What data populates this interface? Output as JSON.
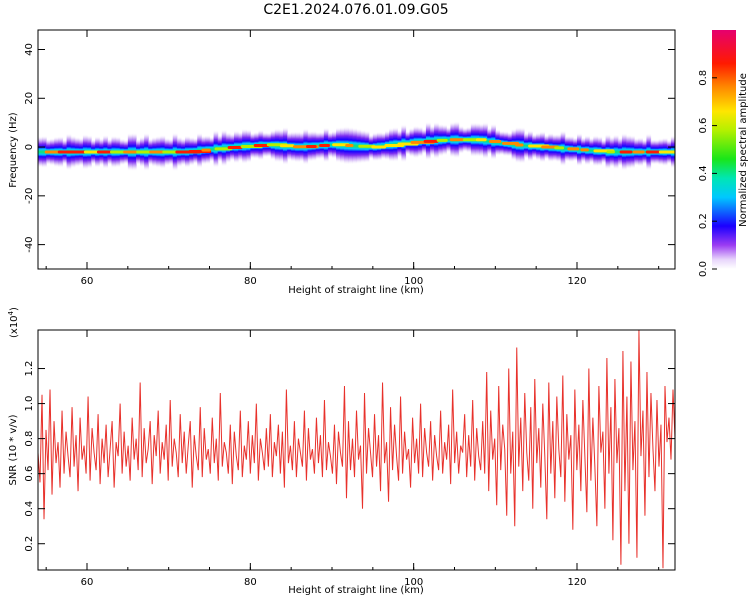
{
  "figure": {
    "title": "C2E1.2024.076.01.09.G05"
  },
  "chart_data": [
    {
      "type": "heatmap",
      "panel": "top",
      "xlabel": "Height of straight line (km)",
      "ylabel": "Frequency (Hz)",
      "xlim": [
        54,
        132
      ],
      "ylim": [
        -50,
        48
      ],
      "xticks": [
        60,
        80,
        100,
        120
      ],
      "yticks": [
        -40,
        -20,
        0,
        20,
        40
      ],
      "yticklabels": [
        "-40",
        "-20",
        "0",
        "20",
        "40"
      ],
      "grid": false,
      "colorbar": {
        "label": "Normalized spectral amplitude",
        "range": [
          0.0,
          1.0
        ],
        "ticks": [
          0.0,
          0.2,
          0.4,
          0.6,
          0.8
        ],
        "ticklabels": [
          "0.0",
          "0.2",
          "0.4",
          "0.6",
          "0.8"
        ],
        "colormap": "rainbow"
      },
      "ridge_frequency": {
        "x": [
          54,
          60,
          66,
          72,
          78,
          82,
          86,
          90,
          95,
          100,
          104,
          108,
          112,
          116,
          120,
          124,
          128,
          132
        ],
        "y": [
          -2,
          -2,
          -2,
          -2,
          0,
          1,
          0,
          1,
          0,
          2,
          3,
          3,
          1,
          0,
          -1,
          -2,
          -2,
          -2
        ]
      }
    },
    {
      "type": "line",
      "panel": "bottom",
      "xlabel": "Height of straight line (km)",
      "ylabel": "SNR (10 * v/v)",
      "yscale_label": "(x10",
      "yscale_exp": "4",
      "yscale_close": ")",
      "xlim": [
        54,
        132
      ],
      "ylim": [
        0.05,
        1.42
      ],
      "xticks": [
        60,
        80,
        100,
        120
      ],
      "yticks": [
        0.2,
        0.4,
        0.6,
        0.8,
        1.0,
        1.2
      ],
      "yticklabels": [
        "0.2",
        "0.4",
        "0.6",
        "0.8",
        "1.0",
        "1.2"
      ],
      "grid": false,
      "series": [
        {
          "color": "#e8312b",
          "x_start": 54,
          "x_end": 132,
          "values": [
            0.72,
            0.55,
            1.05,
            0.34,
            0.85,
            0.62,
            1.08,
            0.48,
            0.9,
            0.66,
            0.78,
            0.52,
            0.96,
            0.6,
            0.84,
            0.7,
            0.58,
            0.98,
            0.64,
            0.82,
            0.5,
            0.92,
            0.68,
            0.76,
            0.6,
            1.04,
            0.56,
            0.86,
            0.72,
            0.62,
            0.94,
            0.54,
            0.8,
            0.66,
            0.88,
            0.58,
            0.74,
            0.9,
            0.52,
            0.78,
            0.7,
            1.0,
            0.6,
            0.84,
            0.64,
            0.76,
            0.56,
            0.92,
            0.68,
            0.8,
            0.62,
            1.12,
            0.58,
            0.86,
            0.66,
            0.74,
            0.9,
            0.54,
            0.82,
            0.7,
            0.96,
            0.6,
            0.78,
            0.68,
            0.88,
            0.56,
            1.02,
            0.64,
            0.8,
            0.72,
            0.58,
            0.94,
            0.66,
            0.84,
            0.6,
            0.76,
            0.9,
            0.52,
            0.82,
            0.7,
            0.62,
            0.98,
            0.58,
            0.86,
            0.68,
            0.74,
            0.6,
            0.92,
            0.66,
            0.8,
            0.56,
            1.06,
            0.64,
            0.78,
            0.72,
            0.6,
            0.88,
            0.54,
            0.84,
            0.7,
            0.62,
            0.96,
            0.58,
            0.76,
            0.68,
            0.9,
            0.6,
            0.82,
            0.66,
            1.0,
            0.56,
            0.8,
            0.72,
            0.62,
            0.86,
            0.64,
            0.94,
            0.58,
            0.78,
            0.7,
            0.88,
            0.6,
            0.84,
            0.52,
            1.08,
            0.66,
            0.76,
            0.62,
            0.9,
            0.58,
            0.8,
            0.72,
            0.64,
            0.96,
            0.56,
            0.86,
            0.68,
            0.74,
            0.6,
            0.92,
            0.66,
            0.82,
            0.58,
            1.02,
            0.62,
            0.78,
            0.7,
            0.6,
            0.88,
            0.54,
            0.84,
            0.72,
            0.64,
            1.1,
            0.46,
            0.9,
            0.62,
            0.8,
            0.58,
            0.96,
            0.68,
            0.76,
            0.4,
            1.06,
            0.6,
            0.86,
            0.72,
            0.58,
            0.94,
            0.64,
            0.82,
            0.5,
            1.12,
            0.66,
            0.78,
            0.44,
            0.98,
            0.62,
            0.88,
            0.7,
            0.56,
            1.04,
            0.6,
            0.84,
            0.68,
            0.74,
            0.52,
            0.92,
            0.66,
            0.8,
            0.6,
            1.0,
            0.58,
            0.86,
            0.72,
            0.64,
            0.9,
            0.56,
            0.82,
            0.7,
            0.62,
            0.96,
            0.6,
            0.78,
            0.68,
            0.88,
            0.54,
            1.08,
            0.66,
            0.84,
            0.6,
            0.76,
            0.72,
            0.94,
            0.58,
            0.82,
            0.64,
            1.02,
            0.56,
            0.86,
            0.7,
            0.62,
            0.9,
            0.6,
            1.18,
            0.5,
            0.96,
            0.68,
            0.8,
            0.42,
            1.1,
            0.62,
            0.88,
            0.74,
            0.36,
            1.2,
            0.6,
            0.84,
            0.3,
            1.32,
            0.64,
            0.92,
            0.5,
            1.06,
            0.72,
            0.56,
            0.98,
            0.4,
            1.14,
            0.66,
            0.86,
            0.52,
            1.0,
            0.7,
            0.34,
            1.12,
            0.6,
            0.9,
            0.46,
            1.04,
            0.74,
            0.58,
            1.16,
            0.44,
            0.94,
            0.68,
            0.82,
            0.28,
            1.08,
            0.62,
            0.88,
            0.5,
            1.02,
            0.7,
            0.38,
            1.2,
            0.56,
            0.92,
            0.64,
            0.3,
            1.1,
            0.72,
            0.84,
            0.4,
            1.26,
            0.6,
            0.98,
            0.22,
            1.14,
            0.66,
            0.86,
            0.08,
            1.3,
            0.5,
            1.04,
            0.2,
            1.24,
            0.62,
            0.9,
            0.12,
            1.42,
            0.7,
            0.96,
            0.36,
            1.18,
            0.58,
            1.06,
            0.74,
            0.5,
            1.02,
            0.64,
            0.88,
            0.06,
            1.1,
            0.78,
            0.92,
            0.68,
            1.08,
            0.8
          ]
        }
      ]
    }
  ]
}
